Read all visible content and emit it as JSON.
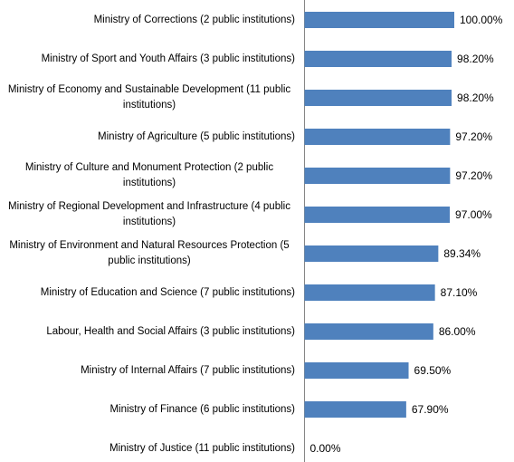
{
  "chart_data": {
    "type": "bar",
    "orientation": "horizontal",
    "categories": [
      "Ministry of Corrections (2 public institutions)",
      "Ministry of Sport and Youth Affairs (3 public institutions)",
      "Ministry of Economy and Sustainable Development (11 public institutions)",
      "Ministry of Agriculture (5 public institutions)",
      "Ministry of Culture and Monument Protection (2 public institutions)",
      "Ministry of Regional Development and Infrastructure (4 public institutions)",
      "Ministry of Environment and Natural Resources Protection (5 public institutions)",
      "Ministry of Education and Science (7 public institutions)",
      "Labour, Health and Social Affairs  (3 public institutions)",
      "Ministry of Internal Affairs (7 public institutions)",
      "Ministry of Finance (6 public institutions)",
      "Ministry of Justice (11 public institutions)"
    ],
    "values": [
      100,
      98.2,
      98.2,
      97.2,
      97.2,
      97,
      89.34,
      87.1,
      86,
      69.5,
      67.9,
      0
    ],
    "value_labels": [
      "100.00%",
      "98.20%",
      "98.20%",
      "97.20%",
      "97.20%",
      "97.00%",
      "89.34%",
      "87.10%",
      "86.00%",
      "69.50%",
      "67.90%",
      "0.00%"
    ],
    "color": "#4f81bd",
    "xlim": [
      0,
      100
    ]
  }
}
